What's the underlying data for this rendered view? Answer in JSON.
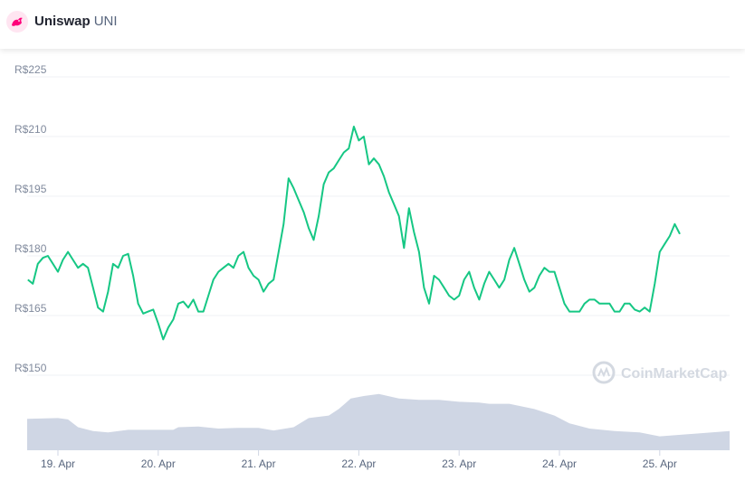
{
  "header": {
    "name": "Uniswap",
    "symbol": "UNI",
    "logo_icon": "uniswap-unicorn-icon"
  },
  "watermark": {
    "text": "CoinMarketCap",
    "icon": "coinmarketcap-logo-icon"
  },
  "colors": {
    "price_line": "#16c784",
    "volume_area": "#cfd6e4",
    "grid": "#eff2f5"
  },
  "chart_data": {
    "type": "line",
    "title": "",
    "xlabel": "",
    "ylabel": "",
    "ylim": [
      150,
      225
    ],
    "y_ticks": [
      "R$225",
      "R$210",
      "R$195",
      "R$180",
      "R$165",
      "R$150"
    ],
    "y_tick_values": [
      225,
      210,
      195,
      180,
      165,
      150
    ],
    "x_ticks": [
      "19. Apr",
      "20. Apr",
      "21. Apr",
      "22. Apr",
      "23. Apr",
      "24. Apr",
      "25. Apr"
    ],
    "x_tick_values": [
      1,
      2,
      3,
      4,
      5,
      6,
      7
    ],
    "grid": true,
    "legend": "none",
    "series": [
      {
        "values": [
          [
            0.7,
            174.0
          ],
          [
            0.75,
            173.0
          ],
          [
            0.8,
            178.0
          ],
          [
            0.85,
            179.5
          ],
          [
            0.9,
            180.0
          ],
          [
            0.95,
            178.0
          ],
          [
            1.0,
            176.0
          ],
          [
            1.05,
            179.0
          ],
          [
            1.1,
            181.0
          ],
          [
            1.15,
            179.0
          ],
          [
            1.2,
            177.0
          ],
          [
            1.25,
            178.0
          ],
          [
            1.3,
            177.0
          ],
          [
            1.35,
            172.0
          ],
          [
            1.4,
            167.0
          ],
          [
            1.45,
            166.0
          ],
          [
            1.5,
            171.0
          ],
          [
            1.55,
            178.0
          ],
          [
            1.6,
            177.0
          ],
          [
            1.65,
            180.0
          ],
          [
            1.7,
            180.5
          ],
          [
            1.75,
            175.0
          ],
          [
            1.8,
            168.0
          ],
          [
            1.85,
            165.5
          ],
          [
            1.9,
            166.0
          ],
          [
            1.95,
            166.5
          ],
          [
            2.0,
            163.0
          ],
          [
            2.05,
            159.0
          ],
          [
            2.1,
            162.0
          ],
          [
            2.15,
            164.0
          ],
          [
            2.2,
            168.0
          ],
          [
            2.25,
            168.5
          ],
          [
            2.3,
            167.0
          ],
          [
            2.35,
            169.0
          ],
          [
            2.4,
            166.0
          ],
          [
            2.45,
            166.0
          ],
          [
            2.5,
            170.0
          ],
          [
            2.55,
            174.0
          ],
          [
            2.6,
            176.0
          ],
          [
            2.65,
            177.0
          ],
          [
            2.7,
            178.0
          ],
          [
            2.75,
            177.0
          ],
          [
            2.8,
            180.0
          ],
          [
            2.85,
            181.0
          ],
          [
            2.9,
            177.0
          ],
          [
            2.95,
            175.0
          ],
          [
            3.0,
            174.0
          ],
          [
            3.05,
            171.0
          ],
          [
            3.1,
            173.0
          ],
          [
            3.15,
            174.0
          ],
          [
            3.2,
            181.0
          ],
          [
            3.25,
            188.0
          ],
          [
            3.3,
            199.5
          ],
          [
            3.35,
            197.0
          ],
          [
            3.4,
            194.0
          ],
          [
            3.45,
            191.0
          ],
          [
            3.5,
            187.0
          ],
          [
            3.55,
            184.0
          ],
          [
            3.6,
            190.0
          ],
          [
            3.65,
            198.0
          ],
          [
            3.7,
            201.0
          ],
          [
            3.75,
            202.0
          ],
          [
            3.8,
            204.0
          ],
          [
            3.85,
            206.0
          ],
          [
            3.9,
            207.0
          ],
          [
            3.95,
            212.5
          ],
          [
            4.0,
            209.0
          ],
          [
            4.05,
            210.0
          ],
          [
            4.1,
            203.0
          ],
          [
            4.15,
            204.5
          ],
          [
            4.2,
            203.0
          ],
          [
            4.25,
            200.0
          ],
          [
            4.3,
            196.0
          ],
          [
            4.35,
            193.0
          ],
          [
            4.4,
            190.0
          ],
          [
            4.45,
            182.0
          ],
          [
            4.5,
            192.0
          ],
          [
            4.55,
            186.0
          ],
          [
            4.6,
            181.0
          ],
          [
            4.65,
            172.0
          ],
          [
            4.7,
            168.0
          ],
          [
            4.75,
            175.0
          ],
          [
            4.8,
            174.0
          ],
          [
            4.85,
            172.0
          ],
          [
            4.9,
            170.0
          ],
          [
            4.95,
            169.0
          ],
          [
            5.0,
            170.0
          ],
          [
            5.05,
            174.0
          ],
          [
            5.1,
            176.0
          ],
          [
            5.15,
            172.0
          ],
          [
            5.2,
            169.0
          ],
          [
            5.25,
            173.0
          ],
          [
            5.3,
            176.0
          ],
          [
            5.35,
            174.0
          ],
          [
            5.4,
            172.0
          ],
          [
            5.45,
            174.0
          ],
          [
            5.5,
            179.0
          ],
          [
            5.55,
            182.0
          ],
          [
            5.6,
            178.0
          ],
          [
            5.65,
            174.0
          ],
          [
            5.7,
            171.0
          ],
          [
            5.75,
            172.0
          ],
          [
            5.8,
            175.0
          ],
          [
            5.85,
            177.0
          ],
          [
            5.9,
            176.0
          ],
          [
            5.95,
            176.0
          ],
          [
            6.0,
            172.0
          ],
          [
            6.05,
            168.0
          ],
          [
            6.1,
            166.0
          ],
          [
            6.15,
            166.0
          ],
          [
            6.2,
            166.0
          ],
          [
            6.25,
            168.0
          ],
          [
            6.3,
            169.0
          ],
          [
            6.35,
            169.0
          ],
          [
            6.4,
            168.0
          ],
          [
            6.45,
            168.0
          ],
          [
            6.5,
            168.0
          ],
          [
            6.55,
            166.0
          ],
          [
            6.6,
            166.0
          ],
          [
            6.65,
            168.0
          ],
          [
            6.7,
            168.0
          ],
          [
            6.75,
            166.5
          ],
          [
            6.8,
            166.0
          ],
          [
            6.85,
            167.0
          ],
          [
            6.9,
            166.0
          ],
          [
            6.95,
            173.0
          ],
          [
            7.0,
            181.0
          ],
          [
            7.05,
            183.0
          ],
          [
            7.1,
            185.0
          ],
          [
            7.15,
            188.0
          ],
          [
            7.2,
            185.5
          ]
        ]
      },
      {
        "values_note": "",
        "values": [
          [
            0.7,
            0.47
          ],
          [
            1.0,
            0.48
          ],
          [
            1.1,
            0.46
          ],
          [
            1.2,
            0.34
          ],
          [
            1.35,
            0.28
          ],
          [
            1.5,
            0.26
          ],
          [
            1.7,
            0.3
          ],
          [
            2.0,
            0.3
          ],
          [
            2.15,
            0.3
          ],
          [
            2.2,
            0.34
          ],
          [
            2.4,
            0.35
          ],
          [
            2.6,
            0.32
          ],
          [
            2.8,
            0.33
          ],
          [
            3.0,
            0.33
          ],
          [
            3.15,
            0.29
          ],
          [
            3.35,
            0.34
          ],
          [
            3.5,
            0.48
          ],
          [
            3.7,
            0.52
          ],
          [
            3.8,
            0.62
          ],
          [
            3.92,
            0.78
          ],
          [
            4.05,
            0.82
          ],
          [
            4.2,
            0.85
          ],
          [
            4.4,
            0.78
          ],
          [
            4.6,
            0.76
          ],
          [
            4.8,
            0.76
          ],
          [
            5.0,
            0.73
          ],
          [
            5.2,
            0.72
          ],
          [
            5.3,
            0.7
          ],
          [
            5.5,
            0.7
          ],
          [
            5.75,
            0.62
          ],
          [
            5.95,
            0.52
          ],
          [
            6.1,
            0.4
          ],
          [
            6.3,
            0.32
          ],
          [
            6.55,
            0.28
          ],
          [
            6.8,
            0.26
          ],
          [
            7.0,
            0.2
          ],
          [
            7.2,
            0.28
          ]
        ]
      }
    ]
  }
}
